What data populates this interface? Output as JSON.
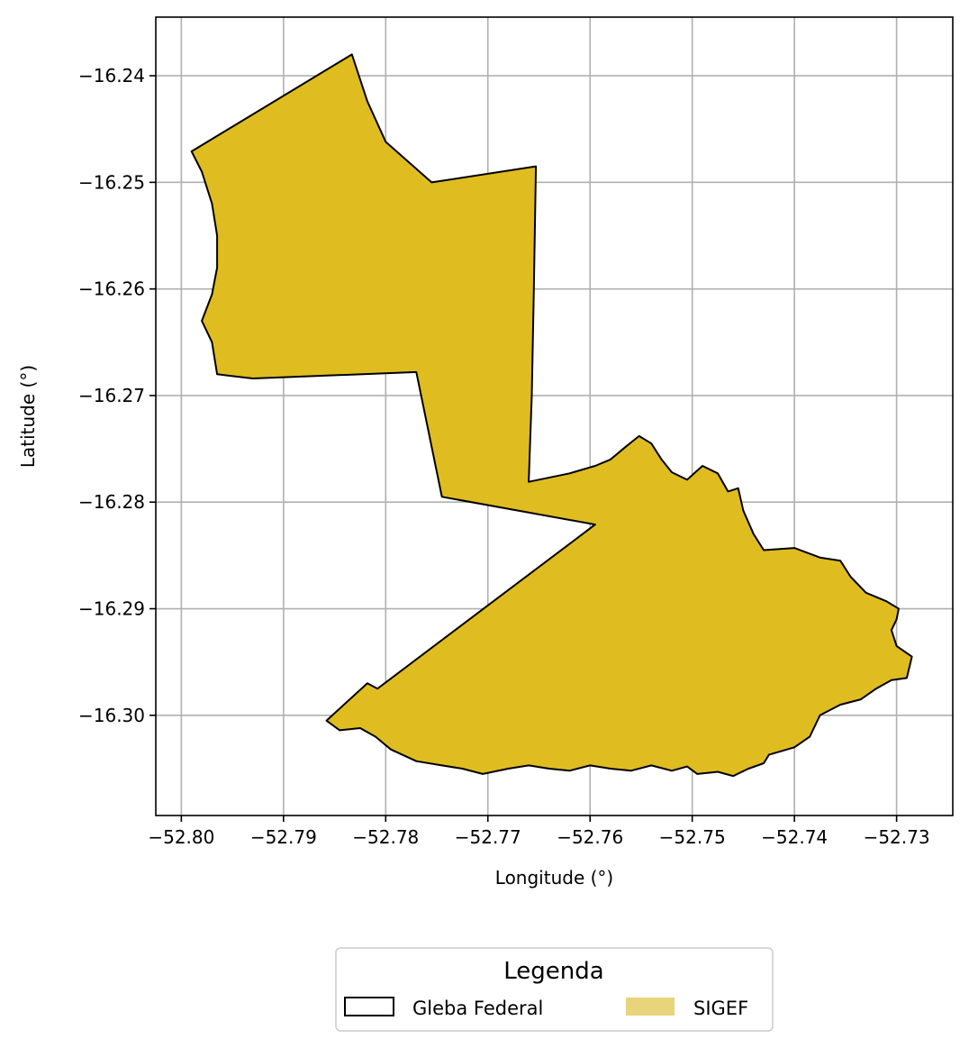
{
  "chart_data": {
    "type": "map",
    "xlabel": "Longitude (°)",
    "ylabel": "Latitude (°)",
    "xlim": [
      -52.8025,
      -52.7245
    ],
    "ylim": [
      -16.3094,
      -16.2345
    ],
    "x_ticks": [
      -52.8,
      -52.79,
      -52.78,
      -52.77,
      -52.76,
      -52.75,
      -52.74,
      -52.73
    ],
    "x_tick_labels": [
      "−52.80",
      "−52.79",
      "−52.78",
      "−52.77",
      "−52.76",
      "−52.75",
      "−52.74",
      "−52.73"
    ],
    "y_ticks": [
      -16.24,
      -16.25,
      -16.26,
      -16.27,
      -16.28,
      -16.29,
      -16.3
    ],
    "y_tick_labels": [
      "−16.24",
      "−16.25",
      "−16.26",
      "−16.27",
      "−16.28",
      "−16.29",
      "−16.30"
    ],
    "grid": true,
    "legend": {
      "title": "Legenda",
      "position": "bottom-center",
      "entries": [
        {
          "label": "Gleba Federal",
          "style": "outline",
          "edge_color": "#000000"
        },
        {
          "label": "SIGEF",
          "style": "fill",
          "fill_color": "#e8d47a"
        }
      ]
    },
    "polygon": {
      "fill_color": "#dfbd20",
      "edge_color": "#000000",
      "coordinates": [
        [
          -52.7833,
          -16.238
        ],
        [
          -52.7818,
          -16.2424
        ],
        [
          -52.78,
          -16.2462
        ],
        [
          -52.7755,
          -16.25
        ],
        [
          -52.7653,
          -16.2485
        ],
        [
          -52.7655,
          -16.26
        ],
        [
          -52.7657,
          -16.27
        ],
        [
          -52.766,
          -16.2781
        ],
        [
          -52.762,
          -16.2773
        ],
        [
          -52.7595,
          -16.2766
        ],
        [
          -52.758,
          -16.276
        ],
        [
          -52.7565,
          -16.2748
        ],
        [
          -52.7552,
          -16.2738
        ],
        [
          -52.754,
          -16.2745
        ],
        [
          -52.753,
          -16.276
        ],
        [
          -52.752,
          -16.2772
        ],
        [
          -52.7505,
          -16.2779
        ],
        [
          -52.749,
          -16.2766
        ],
        [
          -52.7475,
          -16.2773
        ],
        [
          -52.7465,
          -16.279
        ],
        [
          -52.7455,
          -16.2787
        ],
        [
          -52.745,
          -16.2808
        ],
        [
          -52.744,
          -16.283
        ],
        [
          -52.743,
          -16.2845
        ],
        [
          -52.74,
          -16.2843
        ],
        [
          -52.7375,
          -16.2852
        ],
        [
          -52.7355,
          -16.2855
        ],
        [
          -52.7345,
          -16.287
        ],
        [
          -52.733,
          -16.2885
        ],
        [
          -52.731,
          -16.2893
        ],
        [
          -52.7298,
          -16.29
        ],
        [
          -52.73,
          -16.291
        ],
        [
          -52.7305,
          -16.292
        ],
        [
          -52.73,
          -16.2935
        ],
        [
          -52.7285,
          -16.2945
        ],
        [
          -52.729,
          -16.2965
        ],
        [
          -52.7305,
          -16.2967
        ],
        [
          -52.732,
          -16.2975
        ],
        [
          -52.7335,
          -16.2985
        ],
        [
          -52.7355,
          -16.299
        ],
        [
          -52.7375,
          -16.3
        ],
        [
          -52.7385,
          -16.302
        ],
        [
          -52.74,
          -16.303
        ],
        [
          -52.7425,
          -16.3037
        ],
        [
          -52.743,
          -16.3045
        ],
        [
          -52.7445,
          -16.305
        ],
        [
          -52.746,
          -16.3057
        ],
        [
          -52.7475,
          -16.3053
        ],
        [
          -52.7495,
          -16.3055
        ],
        [
          -52.7505,
          -16.3048
        ],
        [
          -52.752,
          -16.3052
        ],
        [
          -52.754,
          -16.3047
        ],
        [
          -52.756,
          -16.3052
        ],
        [
          -52.758,
          -16.305
        ],
        [
          -52.76,
          -16.3047
        ],
        [
          -52.762,
          -16.3052
        ],
        [
          -52.764,
          -16.305
        ],
        [
          -52.766,
          -16.3047
        ],
        [
          -52.768,
          -16.305
        ],
        [
          -52.7705,
          -16.3055
        ],
        [
          -52.7725,
          -16.305
        ],
        [
          -52.7745,
          -16.3047
        ],
        [
          -52.777,
          -16.3043
        ],
        [
          -52.7795,
          -16.3032
        ],
        [
          -52.781,
          -16.302
        ],
        [
          -52.7825,
          -16.3012
        ],
        [
          -52.7845,
          -16.3014
        ],
        [
          -52.7858,
          -16.3005
        ],
        [
          -52.7818,
          -16.297
        ],
        [
          -52.7808,
          -16.2975
        ],
        [
          -52.7595,
          -16.2821
        ],
        [
          -52.7745,
          -16.2795
        ],
        [
          -52.777,
          -16.2678
        ],
        [
          -52.793,
          -16.2684
        ],
        [
          -52.7965,
          -16.268
        ],
        [
          -52.797,
          -16.265
        ],
        [
          -52.798,
          -16.263
        ],
        [
          -52.797,
          -16.2605
        ],
        [
          -52.7965,
          -16.258
        ],
        [
          -52.7965,
          -16.255
        ],
        [
          -52.797,
          -16.252
        ],
        [
          -52.798,
          -16.249
        ],
        [
          -52.799,
          -16.2471
        ]
      ]
    }
  }
}
